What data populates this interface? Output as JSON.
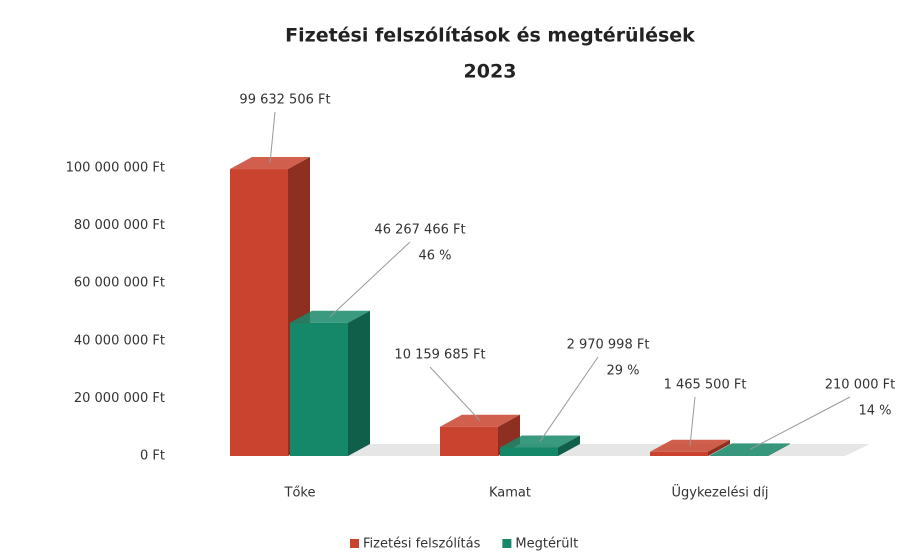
{
  "chart_data": {
    "type": "bar3d",
    "title": "Fizetési felszólítások és megtérülések",
    "subtitle": "2023",
    "categories": [
      "Tőke",
      "Kamat",
      "Ügykezelési díj"
    ],
    "series": [
      {
        "name": "Fizetési felszólítás",
        "color": "#c9432f",
        "values": [
          99632506,
          10159685,
          1465500
        ],
        "value_labels": [
          "99 632 506 Ft",
          "10 159 685 Ft",
          "1 465 500 Ft"
        ]
      },
      {
        "name": "Megtérült",
        "color": "#16886a",
        "values": [
          46267466,
          2970998,
          210000
        ],
        "value_labels": [
          "46 267 466 Ft",
          "2 970 998 Ft",
          "210 000 Ft"
        ],
        "percent_labels": [
          "46 %",
          "29 %",
          "14 %"
        ]
      }
    ],
    "ylim": [
      0,
      100000000
    ],
    "yticks": [
      {
        "value": 0,
        "label": "0 Ft"
      },
      {
        "value": 20000000,
        "label": "20 000 000 Ft"
      },
      {
        "value": 40000000,
        "label": "40 000 000 Ft"
      },
      {
        "value": 60000000,
        "label": "60 000 000 Ft"
      },
      {
        "value": 80000000,
        "label": "80 000 000 Ft"
      },
      {
        "value": 100000000,
        "label": "100 000 000 Ft"
      }
    ],
    "grid": false,
    "legend": "bottom"
  }
}
